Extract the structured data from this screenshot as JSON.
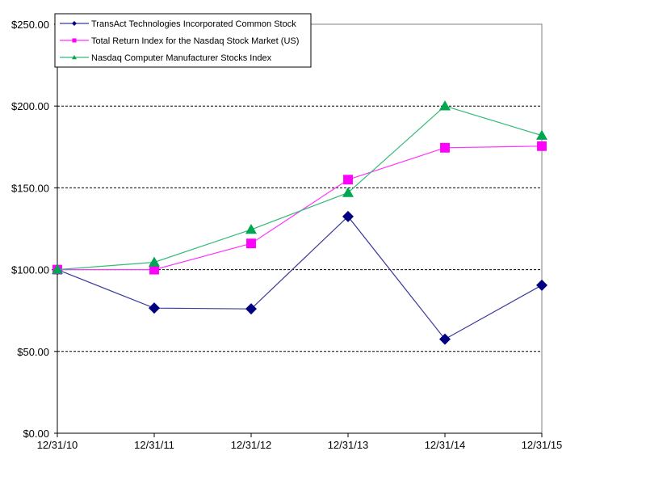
{
  "chart_data": {
    "type": "line",
    "title": "",
    "xlabel": "",
    "ylabel": "",
    "categories": [
      "12/31/10",
      "12/31/11",
      "12/31/12",
      "12/31/13",
      "12/31/14",
      "12/31/15"
    ],
    "ylim": [
      0,
      250
    ],
    "yticks": [
      0,
      50,
      100,
      150,
      200,
      250
    ],
    "ytick_labels": [
      "$0.00",
      "$50.00",
      "$100.00",
      "$150.00",
      "$200.00",
      "$250.00"
    ],
    "grid": "horizontal dashed",
    "legend_position": "top-left",
    "series": [
      {
        "name": "TransAct Technologies Incorporated Common Stock",
        "line_color": "#3b3b9e",
        "marker_color": "#000080",
        "marker": "diamond",
        "values": [
          100,
          76.5,
          76,
          132.5,
          57.5,
          90.5
        ]
      },
      {
        "name": "Total Return Index for the Nasdaq Stock Market (US)",
        "line_color": "#ff33ff",
        "marker_color": "#ff00ff",
        "marker": "square",
        "values": [
          100,
          100,
          116,
          155,
          174.5,
          175.5
        ]
      },
      {
        "name": "Nasdaq Computer Manufacturer Stocks Index",
        "line_color": "#33bb77",
        "marker_color": "#00a650",
        "marker": "triangle",
        "values": [
          100,
          104.5,
          124.5,
          147,
          200,
          182
        ]
      }
    ]
  }
}
